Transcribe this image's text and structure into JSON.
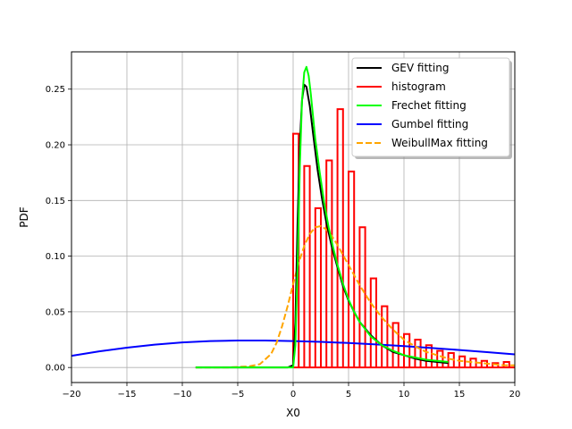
{
  "chart_data": {
    "type": "line",
    "xlabel": "X0",
    "ylabel": "PDF",
    "xlim": [
      -20,
      20
    ],
    "ylim": [
      -0.0135,
      0.2835
    ],
    "xticks": [
      "−20",
      "−15",
      "−10",
      "−5",
      "0",
      "5",
      "10",
      "15",
      "20"
    ],
    "yticks": [
      "0.00",
      "0.05",
      "0.10",
      "0.15",
      "0.20",
      "0.25"
    ],
    "grid": true,
    "legend_position": "top-right",
    "colors": {
      "gev": "#000000",
      "histogram": "#ff0000",
      "frechet": "#00ff00",
      "gumbel": "#0000ff",
      "weibull": "#ffa500",
      "grid": "#b0b0b0"
    },
    "histogram": {
      "name": "histogram",
      "bin_width": 0.5,
      "bins_left": [
        0,
        0.5,
        1,
        1.5,
        2,
        2.5,
        3,
        3.5,
        4,
        4.5,
        5,
        5.5,
        6,
        6.5,
        7,
        7.5,
        8,
        8.5,
        9,
        9.5,
        10,
        10.5,
        11,
        11.5,
        12,
        12.5,
        13,
        13.5,
        14,
        14.5,
        15,
        15.5,
        16,
        16.5,
        17,
        17.5,
        18,
        18.5,
        19,
        19.5
      ],
      "values": [
        0.21,
        0.0,
        0.181,
        0.0,
        0.143,
        0.0,
        0.186,
        0.0,
        0.232,
        0.0,
        0.176,
        0.0,
        0.126,
        0.0,
        0.08,
        0.0,
        0.055,
        0.0,
        0.04,
        0.0,
        0.03,
        0.0,
        0.025,
        0.0,
        0.02,
        0.0,
        0.015,
        0.0,
        0.013,
        0.0,
        0.01,
        0.0,
        0.008,
        0.0,
        0.006,
        0.0,
        0.004,
        0.0,
        0.005,
        0.0
      ]
    },
    "series": [
      {
        "name": "GEV fitting",
        "style": "solid",
        "x": [
          -8.8,
          -1,
          -0.5,
          0,
          0.2,
          0.4,
          0.6,
          0.8,
          1.0,
          1.2,
          1.5,
          1.8,
          2.2,
          2.6,
          3.0,
          3.5,
          4.0,
          4.5,
          5.0,
          5.5,
          6.0,
          7.0,
          8.0,
          9.0,
          10.0,
          11.0,
          12.0,
          13.0,
          14.0
        ],
        "y": [
          0.0,
          0.0,
          0.0,
          0.002,
          0.04,
          0.13,
          0.2,
          0.24,
          0.254,
          0.252,
          0.235,
          0.21,
          0.178,
          0.152,
          0.13,
          0.108,
          0.09,
          0.073,
          0.06,
          0.05,
          0.041,
          0.029,
          0.02,
          0.014,
          0.011,
          0.008,
          0.006,
          0.005,
          0.004
        ]
      },
      {
        "name": "Frechet fitting",
        "style": "solid",
        "x": [
          -8.8,
          -1,
          -0.5,
          -0.2,
          0,
          0.2,
          0.4,
          0.6,
          0.8,
          1.0,
          1.2,
          1.4,
          1.6,
          1.8,
          2.0,
          2.4,
          2.8,
          3.2,
          3.6,
          4.0,
          4.5,
          5.0,
          5.5,
          6.0,
          7.0,
          8.0,
          9.0,
          10.0,
          11.0,
          12.0,
          13.0,
          14.0
        ],
        "y": [
          0.0,
          0.0,
          0.0,
          0.0,
          0.0,
          0.02,
          0.09,
          0.18,
          0.24,
          0.265,
          0.27,
          0.262,
          0.245,
          0.225,
          0.205,
          0.175,
          0.148,
          0.126,
          0.108,
          0.092,
          0.075,
          0.061,
          0.05,
          0.041,
          0.028,
          0.02,
          0.015,
          0.011,
          0.009,
          0.007,
          0.006,
          0.005
        ]
      },
      {
        "name": "Gumbel fitting",
        "style": "solid",
        "x": [
          -20,
          -17.5,
          -15,
          -12.5,
          -10,
          -7.5,
          -5,
          -2.5,
          0,
          2.5,
          5,
          7.5,
          10,
          12.5,
          15,
          17.5,
          20
        ],
        "y": [
          0.0105,
          0.0145,
          0.0178,
          0.0205,
          0.0225,
          0.0237,
          0.0242,
          0.0242,
          0.0237,
          0.023,
          0.022,
          0.0207,
          0.0192,
          0.0175,
          0.0157,
          0.0138,
          0.0118
        ]
      },
      {
        "name": "WeibullMax fitting",
        "style": "dashed",
        "x": [
          -8.8,
          -6,
          -4,
          -3,
          -2,
          -1.5,
          -1,
          -0.5,
          0,
          0.5,
          1,
          1.5,
          2,
          2.5,
          3,
          3.5,
          4,
          5,
          6,
          7,
          8,
          9,
          10,
          11,
          12,
          13,
          14,
          15,
          16,
          17,
          18,
          19,
          20
        ],
        "y": [
          0.0,
          0.0,
          0.001,
          0.003,
          0.012,
          0.022,
          0.037,
          0.055,
          0.075,
          0.094,
          0.109,
          0.12,
          0.126,
          0.127,
          0.124,
          0.118,
          0.11,
          0.092,
          0.074,
          0.058,
          0.045,
          0.034,
          0.025,
          0.019,
          0.014,
          0.011,
          0.008,
          0.006,
          0.005,
          0.004,
          0.003,
          0.002,
          0.002
        ]
      }
    ],
    "legend": [
      {
        "label": "GEV fitting",
        "color": "#000000",
        "style": "solid"
      },
      {
        "label": "histogram",
        "color": "#ff0000",
        "style": "solid"
      },
      {
        "label": "Frechet fitting",
        "color": "#00ff00",
        "style": "solid"
      },
      {
        "label": "Gumbel fitting",
        "color": "#0000ff",
        "style": "solid"
      },
      {
        "label": "WeibullMax fitting",
        "color": "#ffa500",
        "style": "dashed"
      }
    ]
  }
}
